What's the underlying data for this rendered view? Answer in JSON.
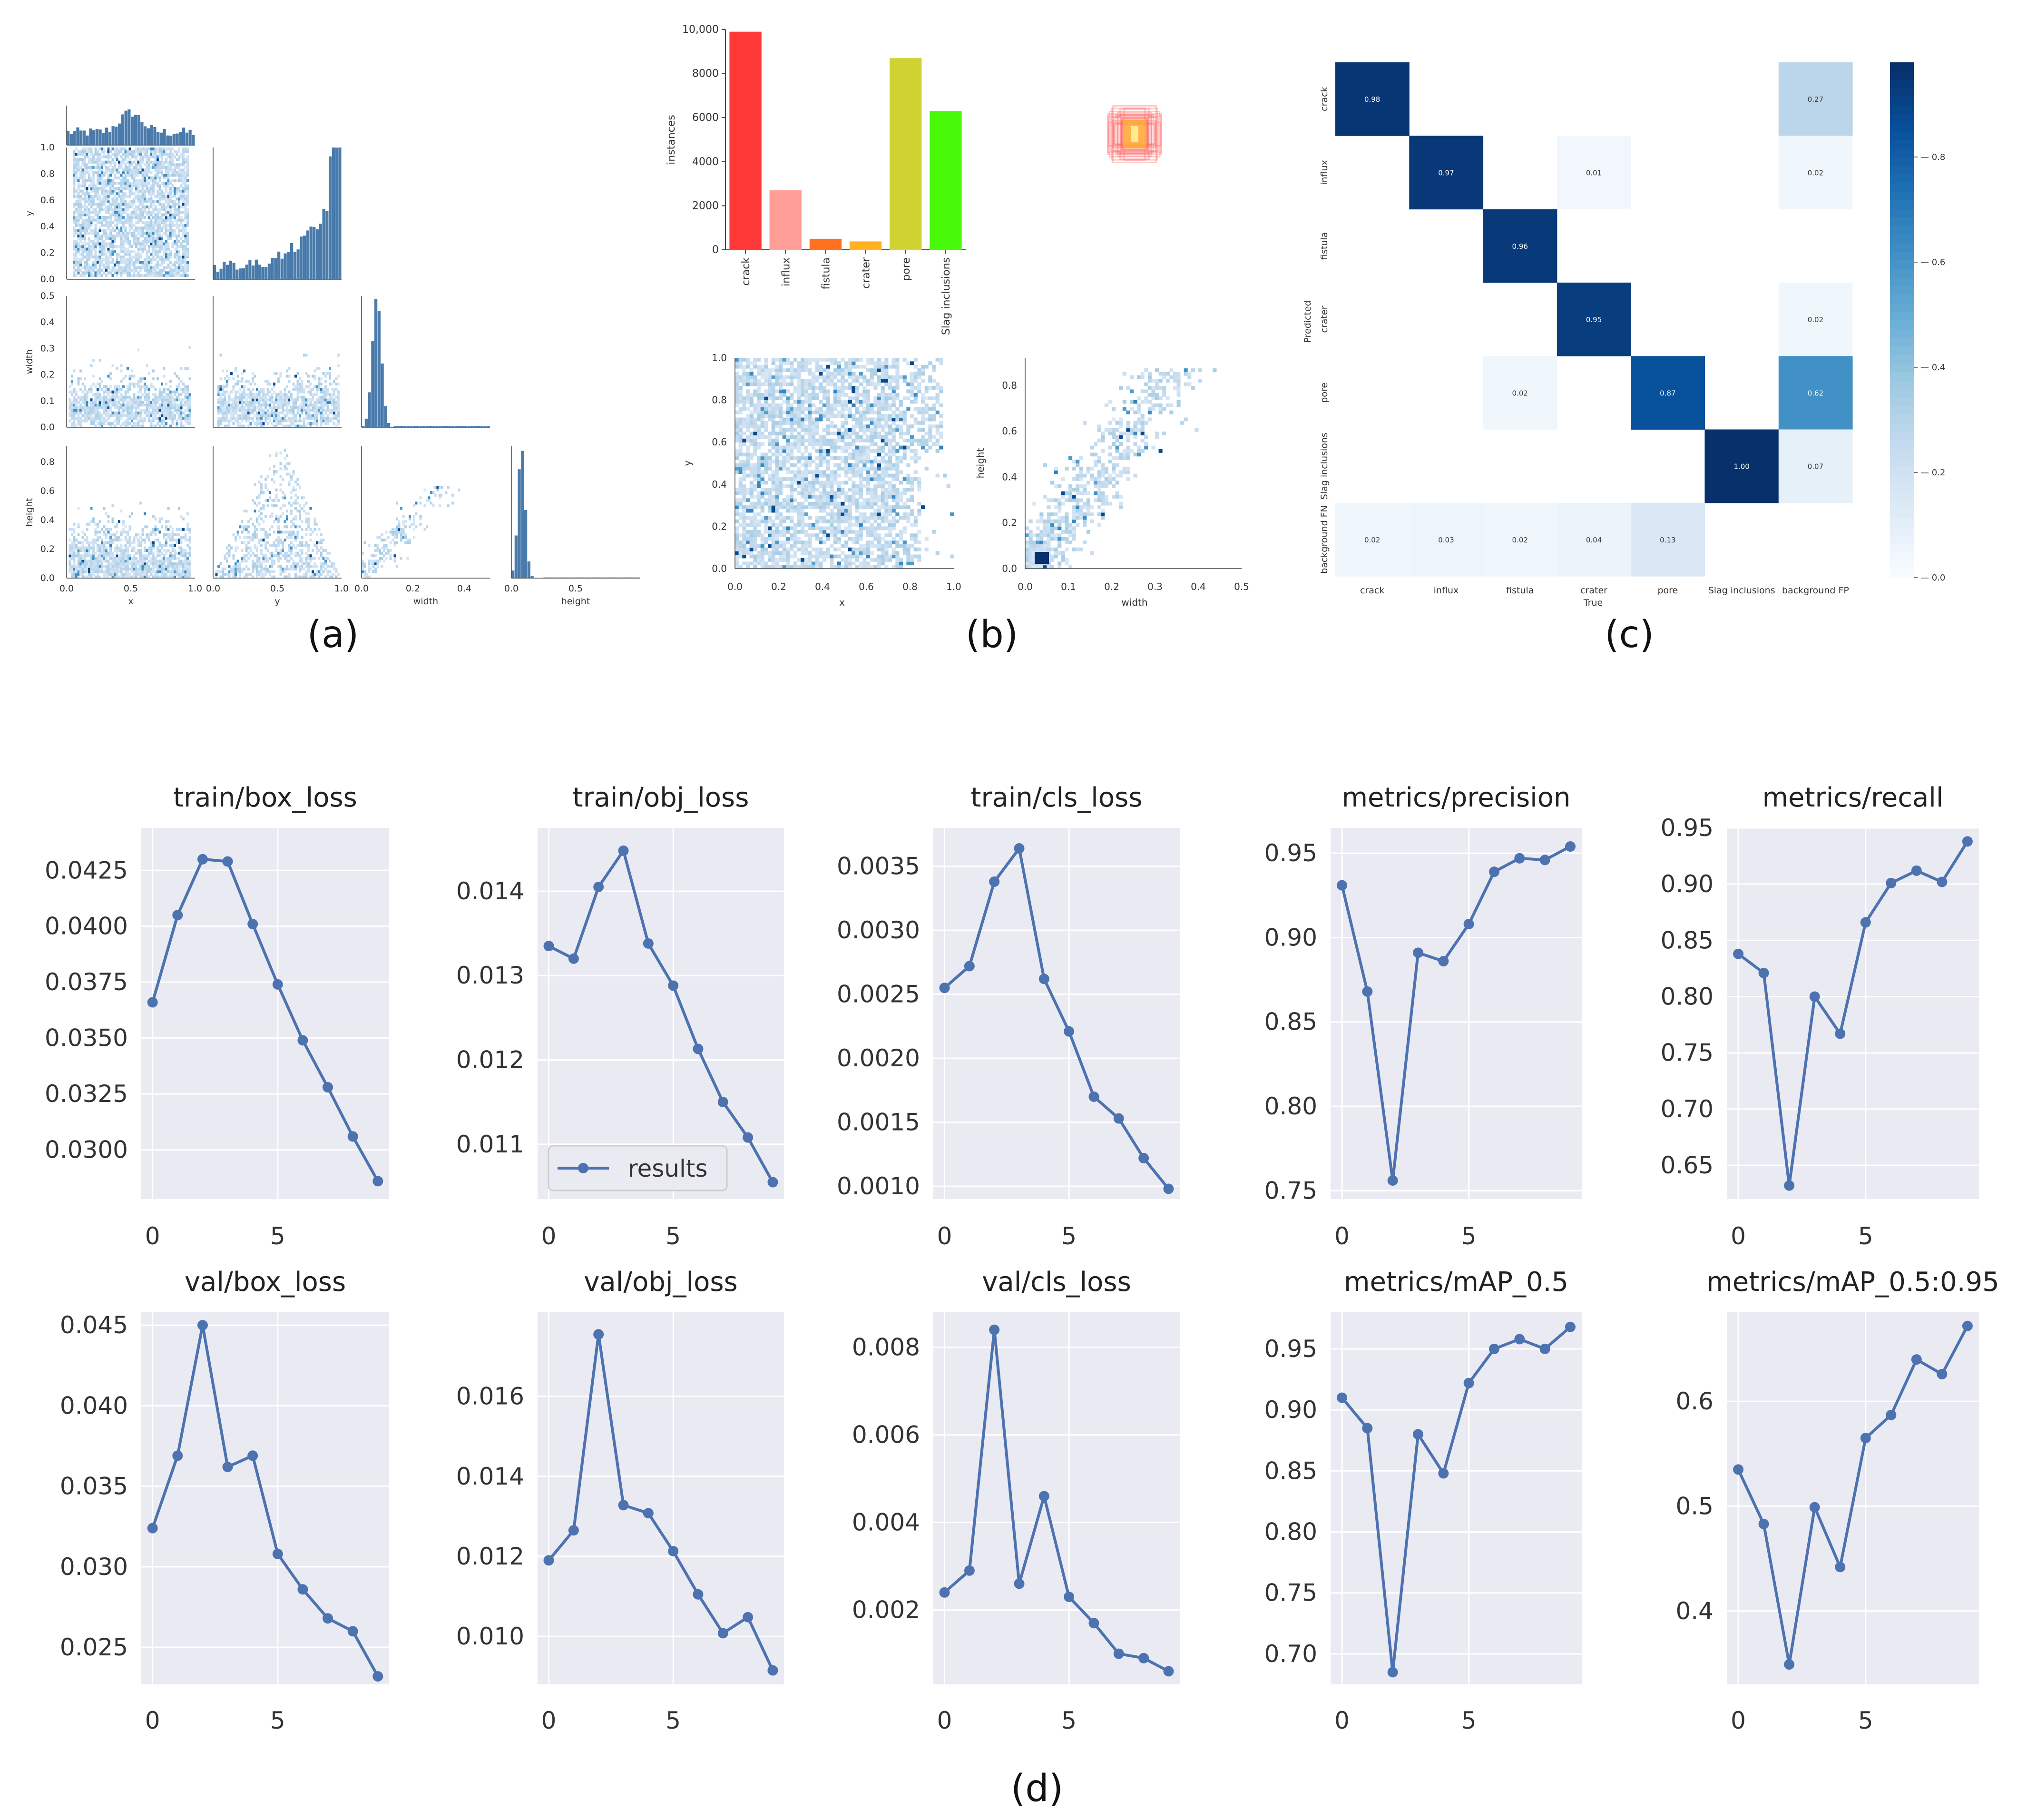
{
  "panel_labels": [
    "(a)",
    "(b)",
    "(c)",
    "(d)"
  ],
  "colors": {
    "accent": "#4c72b0",
    "plot_bg": "#eaeaf2",
    "grid": "#ffffff",
    "hist": "#4a7bab",
    "heat_light": "#c6dbef",
    "heat_dark": "#08306b",
    "bar_colors": [
      "#ff3838",
      "#ff9d97",
      "#ff701f",
      "#ffb21d",
      "#cfd231",
      "#48f90a"
    ]
  },
  "chart_data": [
    {
      "panel": "(a)",
      "type": "heatmap",
      "subtype": "pairplot",
      "variables": [
        "x",
        "y",
        "width",
        "height"
      ],
      "diag_ticks": {
        "x": [
          "0.0",
          "0.5",
          "1.0"
        ],
        "y": [
          "0.0",
          "0.5",
          "1.0"
        ],
        "width": [
          "0.0",
          "0.2",
          "0.4"
        ],
        "height": [
          "0.0",
          "0.5"
        ]
      },
      "row_ticks": {
        "y": [
          "0.0",
          "0.2",
          "0.4",
          "0.6",
          "0.8",
          "1.0"
        ],
        "width": [
          "0.0",
          "0.1",
          "0.2",
          "0.3",
          "0.4",
          "0.5"
        ],
        "height": [
          "0.0",
          "0.2",
          "0.4",
          "0.6",
          "0.8"
        ]
      }
    },
    {
      "panel": "(b)",
      "type": "bar",
      "ylabel": "instances",
      "categories": [
        "crack",
        "influx",
        "fistula",
        "crater",
        "pore",
        "Slag inclusions"
      ],
      "values": [
        9900,
        2700,
        500,
        380,
        8700,
        6300
      ],
      "ylim": [
        0,
        10000
      ],
      "yticks": [
        "0",
        "2000",
        "4000",
        "6000",
        "8000",
        "10,000"
      ]
    },
    {
      "panel": "(b)",
      "type": "heatmap",
      "xlabel": "x",
      "ylabel": "y",
      "xticks": [
        "0.0",
        "0.2",
        "0.4",
        "0.6",
        "0.8",
        "1.0"
      ],
      "yticks": [
        "0.0",
        "0.2",
        "0.4",
        "0.6",
        "0.8",
        "1.0"
      ]
    },
    {
      "panel": "(b)",
      "type": "heatmap",
      "xlabel": "width",
      "ylabel": "height",
      "xticks": [
        "0.0",
        "0.1",
        "0.2",
        "0.3",
        "0.4",
        "0.5"
      ],
      "yticks": [
        "0.0",
        "0.2",
        "0.4",
        "0.6",
        "0.8"
      ]
    },
    {
      "panel": "(c)",
      "type": "heatmap",
      "xlabel": "True",
      "ylabel": "Predicted",
      "rows": [
        "crack",
        "influx",
        "fistula",
        "crater",
        "pore",
        "Slag inclusions",
        "background FN"
      ],
      "cols": [
        "crack",
        "influx",
        "fistula",
        "crater",
        "pore",
        "Slag inclusions",
        "background FP"
      ],
      "cells": [
        [
          0,
          0,
          0.98
        ],
        [
          0,
          6,
          0.27
        ],
        [
          1,
          1,
          0.97
        ],
        [
          1,
          3,
          0.01
        ],
        [
          1,
          6,
          0.02
        ],
        [
          2,
          2,
          0.96
        ],
        [
          3,
          3,
          0.95
        ],
        [
          3,
          6,
          0.02
        ],
        [
          4,
          2,
          0.02
        ],
        [
          4,
          4,
          0.87
        ],
        [
          4,
          6,
          0.62
        ],
        [
          5,
          5,
          1.0
        ],
        [
          5,
          6,
          0.07
        ],
        [
          6,
          0,
          0.02
        ],
        [
          6,
          1,
          0.03
        ],
        [
          6,
          2,
          0.02
        ],
        [
          6,
          3,
          0.04
        ],
        [
          6,
          4,
          0.13
        ]
      ],
      "cell_labels": [
        "0.98",
        "0.27",
        "0.97",
        "0.01",
        "0.02",
        "0.96",
        "0.95",
        "0.02",
        "0.02",
        "0.87",
        "0.62",
        "1.00",
        "0.07",
        "0.02",
        "0.03",
        "0.02",
        "0.04",
        "0.13"
      ],
      "colorbar_ticks": [
        "0.0",
        "0.2",
        "0.4",
        "0.6",
        "0.8"
      ]
    },
    {
      "panel": "(d)",
      "type": "line",
      "legend": "results",
      "x": [
        0,
        1,
        2,
        3,
        4,
        5,
        6,
        7,
        8,
        9
      ],
      "xticks": [
        "0",
        "5"
      ],
      "charts": [
        {
          "title": "train/box_loss",
          "values": [
            0.0366,
            0.0405,
            0.043,
            0.0429,
            0.0401,
            0.0374,
            0.0349,
            0.0328,
            0.0306,
            0.0286
          ],
          "ylim": [
            0.0278,
            0.0444
          ],
          "ytick_values": [
            0.03,
            0.0325,
            0.035,
            0.0375,
            0.04,
            0.0425
          ],
          "yticks": [
            "0.0300",
            "0.0325",
            "0.0350",
            "0.0375",
            "0.0400",
            "0.0425"
          ]
        },
        {
          "title": "train/obj_loss",
          "values": [
            0.01335,
            0.0132,
            0.01405,
            0.01448,
            0.01338,
            0.01288,
            0.01213,
            0.0115,
            0.01108,
            0.01055
          ],
          "ylim": [
            0.01035,
            0.01475
          ],
          "ytick_values": [
            0.011,
            0.012,
            0.013,
            0.014
          ],
          "yticks": [
            "0.011",
            "0.012",
            "0.013",
            "0.014"
          ],
          "legend": true
        },
        {
          "title": "train/cls_loss",
          "values": [
            0.00255,
            0.00272,
            0.00338,
            0.00364,
            0.00262,
            0.00221,
            0.0017,
            0.00153,
            0.00122,
            0.00098
          ],
          "ylim": [
            0.0009,
            0.0038
          ],
          "ytick_values": [
            0.001,
            0.0015,
            0.002,
            0.0025,
            0.003,
            0.0035
          ],
          "yticks": [
            "0.0010",
            "0.0015",
            "0.0020",
            "0.0025",
            "0.0030",
            "0.0035"
          ]
        },
        {
          "title": "metrics/precision",
          "values": [
            0.931,
            0.868,
            0.756,
            0.891,
            0.886,
            0.908,
            0.939,
            0.947,
            0.946,
            0.954
          ],
          "ylim": [
            0.745,
            0.965
          ],
          "ytick_values": [
            0.75,
            0.8,
            0.85,
            0.9,
            0.95
          ],
          "yticks": [
            "0.75",
            "0.80",
            "0.85",
            "0.90",
            "0.95"
          ]
        },
        {
          "title": "metrics/recall",
          "values": [
            0.838,
            0.821,
            0.632,
            0.8,
            0.767,
            0.866,
            0.901,
            0.912,
            0.902,
            0.938
          ],
          "ylim": [
            0.62,
            0.95
          ],
          "ytick_values": [
            0.65,
            0.7,
            0.75,
            0.8,
            0.85,
            0.9,
            0.95
          ],
          "yticks": [
            "0.65",
            "0.70",
            "0.75",
            "0.80",
            "0.85",
            "0.90",
            "0.95"
          ]
        },
        {
          "title": "val/box_loss",
          "values": [
            0.0324,
            0.0369,
            0.045,
            0.0362,
            0.0369,
            0.0308,
            0.0286,
            0.0268,
            0.026,
            0.0232
          ],
          "ylim": [
            0.0227,
            0.0458
          ],
          "ytick_values": [
            0.025,
            0.03,
            0.035,
            0.04,
            0.045
          ],
          "yticks": [
            "0.025",
            "0.030",
            "0.035",
            "0.040",
            "0.045"
          ]
        },
        {
          "title": "val/obj_loss",
          "values": [
            0.0119,
            0.01265,
            0.01755,
            0.01328,
            0.01308,
            0.01213,
            0.01105,
            0.01008,
            0.01048,
            0.00915
          ],
          "ylim": [
            0.0088,
            0.0181
          ],
          "ytick_values": [
            0.01,
            0.012,
            0.014,
            0.016
          ],
          "yticks": [
            "0.010",
            "0.012",
            "0.014",
            "0.016"
          ]
        },
        {
          "title": "val/cls_loss",
          "values": [
            0.0024,
            0.0029,
            0.0084,
            0.0026,
            0.0046,
            0.0023,
            0.0017,
            0.001,
            0.0009,
            0.0006
          ],
          "ylim": [
            0.0003,
            0.0088
          ],
          "ytick_values": [
            0.002,
            0.004,
            0.006,
            0.008
          ],
          "yticks": [
            "0.002",
            "0.004",
            "0.006",
            "0.008"
          ]
        },
        {
          "title": "metrics/mAP_0.5",
          "values": [
            0.91,
            0.885,
            0.685,
            0.88,
            0.848,
            0.922,
            0.95,
            0.958,
            0.95,
            0.968
          ],
          "ylim": [
            0.675,
            0.98
          ],
          "ytick_values": [
            0.7,
            0.75,
            0.8,
            0.85,
            0.9,
            0.95
          ],
          "yticks": [
            "0.70",
            "0.75",
            "0.80",
            "0.85",
            "0.90",
            "0.95"
          ]
        },
        {
          "title": "metrics/mAP_0.5:0.95",
          "values": [
            0.535,
            0.483,
            0.349,
            0.499,
            0.442,
            0.565,
            0.587,
            0.64,
            0.626,
            0.672
          ],
          "ylim": [
            0.33,
            0.685
          ],
          "ytick_values": [
            0.4,
            0.5,
            0.6
          ],
          "yticks": [
            "0.4",
            "0.5",
            "0.6"
          ]
        }
      ]
    }
  ]
}
